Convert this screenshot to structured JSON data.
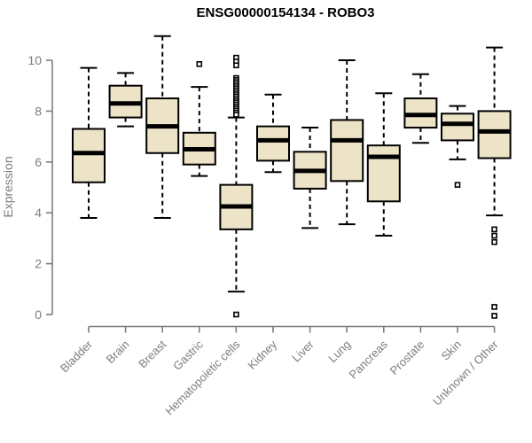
{
  "title": "ENSG00000154134 - ROBO3",
  "chart_data": {
    "type": "boxplot",
    "title": "ENSG00000154134 - ROBO3",
    "xlabel": "",
    "ylabel": "Expression",
    "ylim": [
      0,
      10
    ],
    "yticks": [
      0,
      2,
      4,
      6,
      8,
      10
    ],
    "grid": false,
    "legend": false,
    "box_fill": "#ede4c7",
    "box_border": "#000000",
    "axis_color": "#7d7d7d",
    "label_color": "#7d7d7d",
    "categories": [
      "Bladder",
      "Brain",
      "Breast",
      "Gastric",
      "Hematopoietic cells",
      "Kidney",
      "Liver",
      "Lung",
      "Pancreas",
      "Prostate",
      "Skin",
      "Unknown / Other"
    ],
    "series": [
      {
        "name": "Bladder",
        "low": 3.8,
        "q1": 5.2,
        "median": 6.35,
        "q3": 7.3,
        "high": 9.7,
        "outliers": []
      },
      {
        "name": "Brain",
        "low": 7.4,
        "q1": 7.75,
        "median": 8.3,
        "q3": 9.0,
        "high": 9.5,
        "outliers": []
      },
      {
        "name": "Breast",
        "low": 3.8,
        "q1": 6.35,
        "median": 7.4,
        "q3": 8.5,
        "high": 10.95,
        "outliers": []
      },
      {
        "name": "Gastric",
        "low": 5.45,
        "q1": 5.9,
        "median": 6.5,
        "q3": 7.15,
        "high": 8.95,
        "outliers": [
          9.85
        ]
      },
      {
        "name": "Hematopoietic cells",
        "low": 0.9,
        "q1": 3.35,
        "median": 4.25,
        "q3": 5.1,
        "high": 7.75,
        "outliers": [
          10.1,
          9.95,
          9.8,
          9.3,
          9.22,
          9.14,
          9.06,
          8.98,
          8.9,
          8.82,
          8.74,
          8.66,
          8.58,
          8.5,
          8.42,
          8.34,
          8.26,
          8.18,
          8.1,
          8.02,
          7.94,
          7.86,
          0.0
        ]
      },
      {
        "name": "Kidney",
        "low": 5.6,
        "q1": 6.05,
        "median": 6.85,
        "q3": 7.4,
        "high": 8.65,
        "outliers": []
      },
      {
        "name": "Liver",
        "low": 3.4,
        "q1": 4.95,
        "median": 5.65,
        "q3": 6.4,
        "high": 7.35,
        "outliers": []
      },
      {
        "name": "Lung",
        "low": 3.55,
        "q1": 5.25,
        "median": 6.85,
        "q3": 7.65,
        "high": 10.0,
        "outliers": []
      },
      {
        "name": "Pancreas",
        "low": 3.1,
        "q1": 4.45,
        "median": 6.2,
        "q3": 6.65,
        "high": 8.7,
        "outliers": []
      },
      {
        "name": "Prostate",
        "low": 6.75,
        "q1": 7.35,
        "median": 7.85,
        "q3": 8.5,
        "high": 9.45,
        "outliers": []
      },
      {
        "name": "Skin",
        "low": 6.1,
        "q1": 6.85,
        "median": 7.5,
        "q3": 7.9,
        "high": 8.2,
        "outliers": [
          5.1
        ]
      },
      {
        "name": "Unknown / Other",
        "low": 3.9,
        "q1": 6.15,
        "median": 7.2,
        "q3": 8.0,
        "high": 10.5,
        "outliers": [
          3.35,
          3.1,
          2.85,
          0.3,
          -0.05
        ]
      }
    ]
  }
}
